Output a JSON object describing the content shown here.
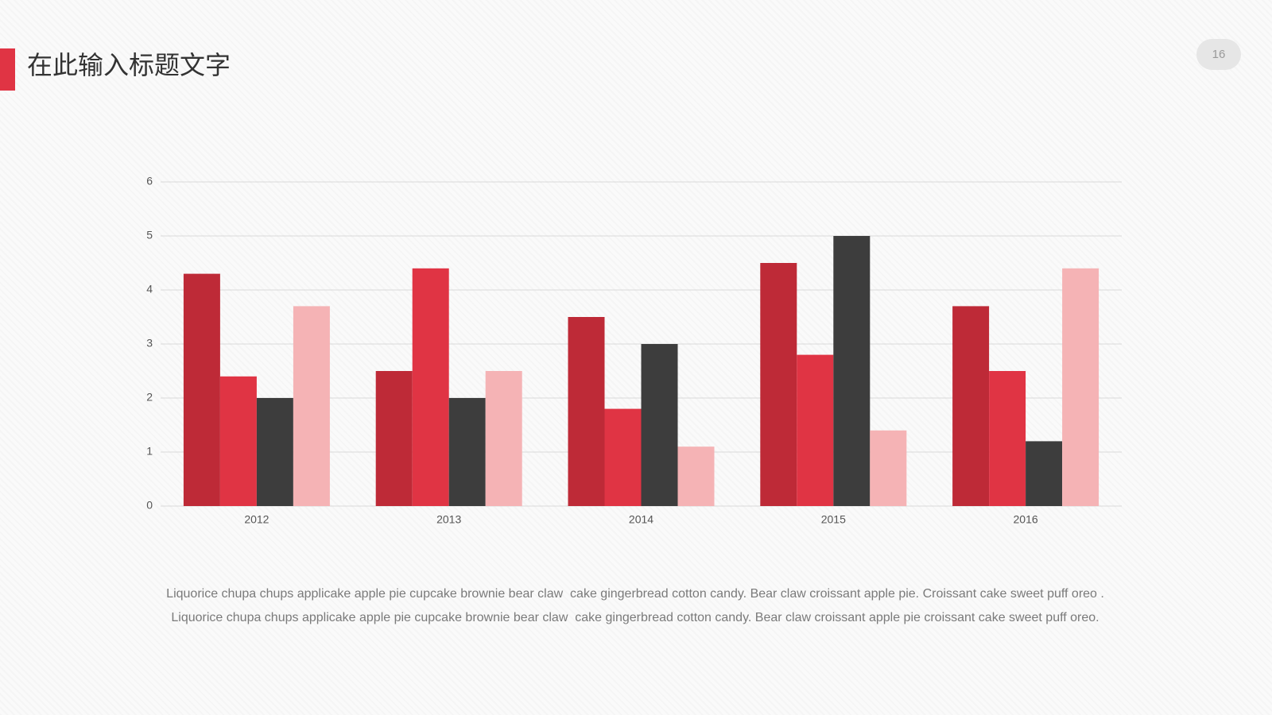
{
  "header": {
    "title": "在此输入标题文字",
    "page_number": "16"
  },
  "chart_data": {
    "type": "bar",
    "categories": [
      "2012",
      "2013",
      "2014",
      "2015",
      "2016"
    ],
    "series": [
      {
        "color": "#be2a37",
        "values": [
          4.3,
          2.5,
          3.5,
          4.5,
          3.7
        ]
      },
      {
        "color": "#e03444",
        "values": [
          2.4,
          4.4,
          1.8,
          2.8,
          2.5
        ]
      },
      {
        "color": "#3d3d3d",
        "values": [
          2.0,
          2.0,
          3.0,
          5.0,
          1.2
        ]
      },
      {
        "color": "#f5b3b5",
        "values": [
          3.7,
          2.5,
          1.1,
          1.4,
          4.4
        ]
      }
    ],
    "ylim": [
      0,
      6
    ],
    "yticks": [
      0,
      1,
      2,
      3,
      4,
      5,
      6
    ],
    "grid": true
  },
  "body": {
    "lines": [
      "Liquorice chupa chups applicake apple pie cupcake brownie bear claw  cake gingerbread cotton candy. Bear claw croissant apple pie. Croissant cake sweet puff oreo .",
      "Liquorice chupa chups applicake apple pie cupcake brownie bear claw  cake gingerbread cotton candy. Bear claw croissant apple pie croissant cake sweet puff oreo."
    ]
  }
}
